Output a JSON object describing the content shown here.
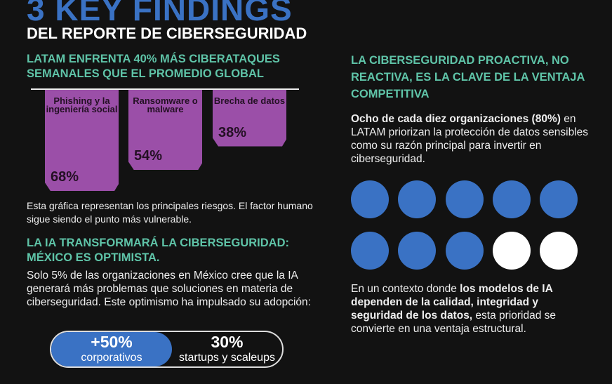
{
  "title": "3 KEY FINDINGS",
  "subtitle": "DEL REPORTE  DE CIBERSEGURIDAD",
  "colors": {
    "background": "#121212",
    "accent_blue": "#3a72c4",
    "accent_teal": "#5fc4a8",
    "bar_purple": "#9b4fa8"
  },
  "finding1": {
    "heading": "LATAM ENFRENTA 40% MÁS CIBERATAQUES SEMANALES QUE EL PROMEDIO GLOBAL",
    "note": "Esta gráfica representan los principales riesgos. El factor humano sigue siendo el punto más vulnerable."
  },
  "chart_data": {
    "type": "bar",
    "orientation": "hanging-down",
    "categories": [
      "Phishing y la ingeniería social",
      "Ransomware o malware",
      "Brecha de datos"
    ],
    "values": [
      68,
      54,
      38
    ],
    "labels": [
      "68%",
      "54%",
      "38%"
    ],
    "unit": "%"
  },
  "finding2": {
    "heading": "LA IA TRANSFORMARÁ LA CIBERSEGURIDAD: MÉXICO ES OPTIMISTA.",
    "body": "Solo 5% de las organizaciones en México cree que la IA generará más problemas que soluciones en materia de ciberseguridad. Este optimismo ha impulsado su adopción:",
    "stat_left": {
      "value": "+50%",
      "label": "corporativos"
    },
    "stat_right": {
      "value": "30%",
      "label": "startups y scaleups"
    }
  },
  "finding3": {
    "heading": "LA CIBERSEGURIDAD PROACTIVA, NO REACTIVA, ES LA CLAVE DE LA VENTAJA COMPETITIVA",
    "lead_bold": "Ocho de cada diez organizaciones (80%)",
    "lead_rest": " en LATAM priorizan la protección de datos sensibles como su razón principal para invertir en ciberseguridad.",
    "dots_filled": 8,
    "dots_total": 10,
    "closing_pre": "En un contexto donde ",
    "closing_bold": "los modelos de IA dependen de la calidad, integridad y seguridad de los datos,",
    "closing_post": " esta prioridad se convierte en una ventaja estructural."
  }
}
